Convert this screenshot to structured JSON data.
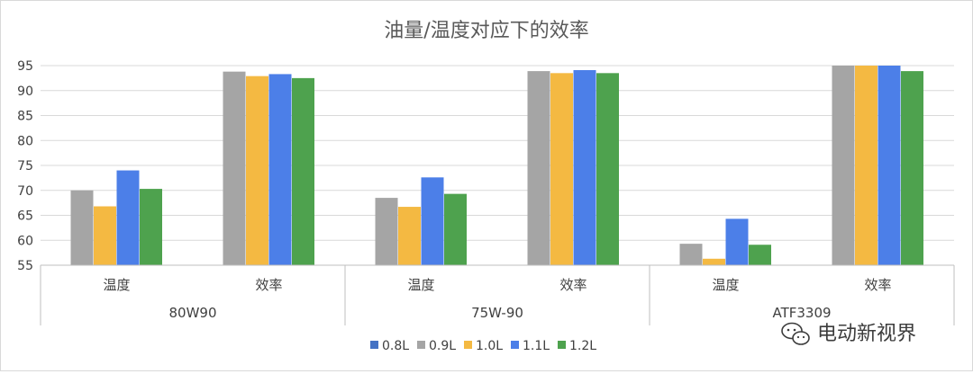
{
  "chart_data": {
    "type": "bar",
    "title": "油量/温度对应下的效率",
    "groups": [
      "80W90",
      "75W-90",
      "ATF3309"
    ],
    "subcategories": [
      "温度",
      "效率"
    ],
    "series": [
      {
        "name": "0.8L",
        "color": "#4472C4",
        "values": [
          null,
          null,
          null,
          null,
          null,
          null
        ]
      },
      {
        "name": "0.9L",
        "color": "#A5A5A5",
        "values": [
          70.0,
          93.8,
          68.5,
          93.9,
          59.3,
          95.0
        ]
      },
      {
        "name": "1.0L",
        "color": "#F4B942",
        "values": [
          66.8,
          92.9,
          66.7,
          93.5,
          56.3,
          95.0
        ]
      },
      {
        "name": "1.1L",
        "color": "#4C7FE8",
        "values": [
          74.0,
          93.3,
          72.6,
          94.1,
          64.3,
          95.0
        ]
      },
      {
        "name": "1.2L",
        "color": "#4EA24E",
        "values": [
          70.3,
          92.5,
          69.3,
          93.5,
          59.1,
          93.9
        ]
      }
    ],
    "yticks": [
      "55",
      "60",
      "65",
      "70",
      "75",
      "80",
      "85",
      "90",
      "95"
    ],
    "ylim": [
      55,
      95
    ],
    "grid": true,
    "legend_position": "bottom"
  },
  "watermark": {
    "text": "电动新视界",
    "icon": "wechat-icon"
  }
}
